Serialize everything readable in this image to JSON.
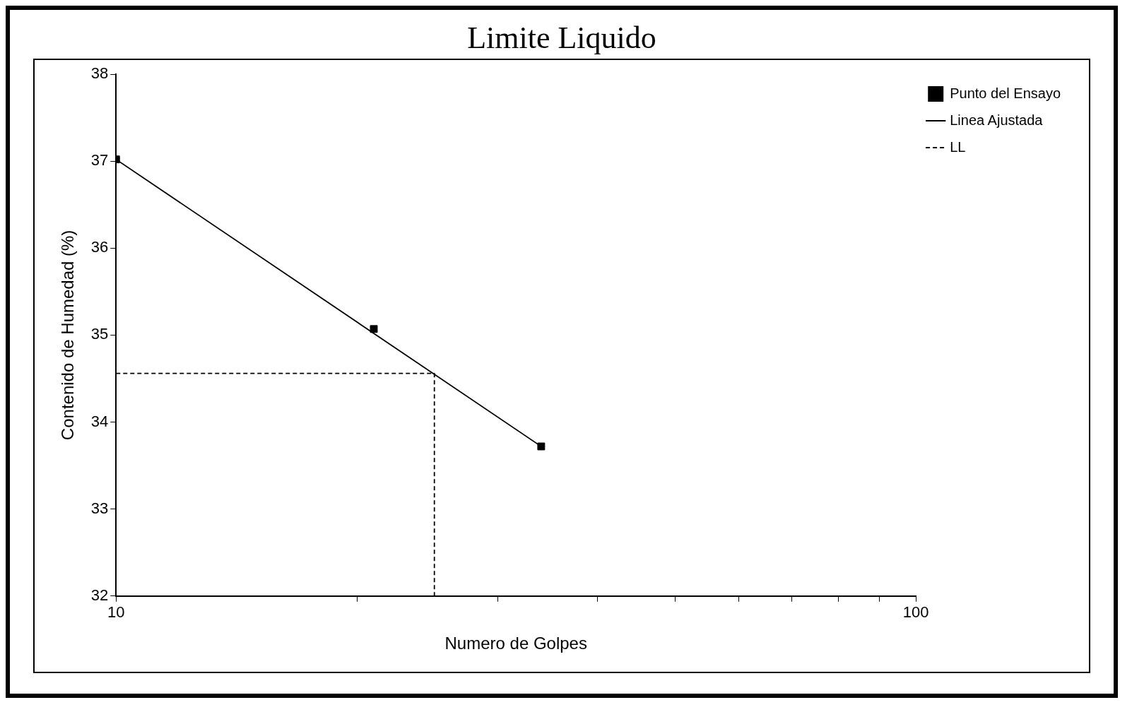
{
  "chart_data": {
    "type": "scatter",
    "title": "Limite Liquido",
    "xlabel": "Numero de Golpes",
    "ylabel": "Contenido de Humedad (%)",
    "log": "x",
    "xlim": [
      10,
      100
    ],
    "xticks": [
      10,
      {
        "value": 20,
        "label": null
      },
      {
        "value": 30,
        "label": null
      },
      {
        "value": 40,
        "label": null
      },
      {
        "value": 50,
        "label": null
      },
      {
        "value": 60,
        "label": null
      },
      {
        "value": 70,
        "label": null
      },
      {
        "value": 80,
        "label": null
      },
      {
        "value": 90,
        "label": null
      },
      100
    ],
    "ylim": [
      32,
      38
    ],
    "yticks": [
      32,
      33,
      34,
      35,
      36,
      37,
      38
    ],
    "grid": false,
    "legend": "top right",
    "series": [
      {
        "name": "Punto del Ensayo",
        "marker": "square",
        "color": "#000000",
        "x": [
          10,
          21,
          34
        ],
        "values": [
          37.02,
          35.07,
          33.72
        ]
      },
      {
        "name": "Linea Ajustada",
        "type": "line",
        "marker": "none",
        "line_style": "solid",
        "color": "#000000",
        "x": [
          10,
          34
        ],
        "values": [
          37.02,
          33.72
        ]
      },
      {
        "name": "LL",
        "type": "line",
        "marker": "none",
        "line_style": "dashed",
        "color": "#000000",
        "x": [
          10,
          25,
          25
        ],
        "values": [
          34.56,
          34.56,
          32
        ]
      }
    ]
  }
}
